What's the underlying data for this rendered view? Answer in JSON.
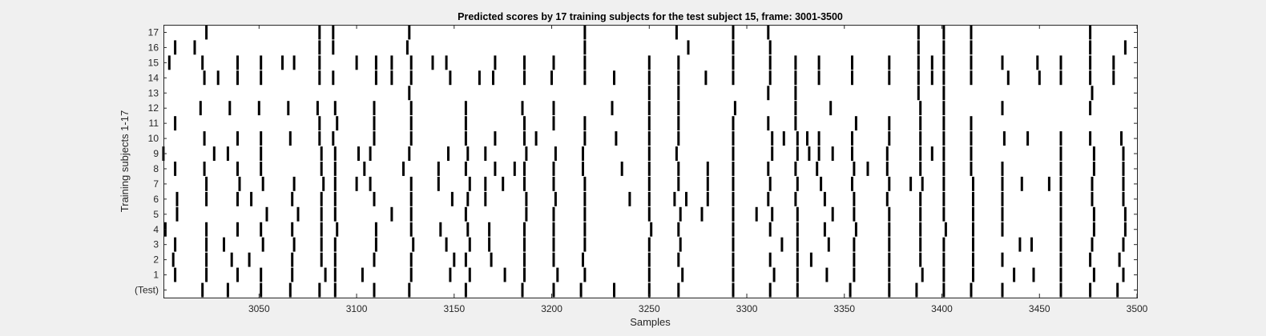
{
  "chart_data": {
    "type": "raster",
    "title": "Predicted scores by 17 training subjects for the test subject 15, frame: 3001-3500",
    "xlabel": "Samples",
    "ylabel": "Training subjects 1-17",
    "xlim": [
      3001,
      3500
    ],
    "xticks": [
      3050,
      3100,
      3150,
      3200,
      3250,
      3300,
      3350,
      3400,
      3450,
      3500
    ],
    "row_labels": [
      "17",
      "16",
      "15",
      "14",
      "13",
      "12",
      "11",
      "10",
      "9",
      "8",
      "7",
      "6",
      "5",
      "4",
      "3",
      "2",
      "1",
      "(Test)"
    ],
    "grid": false,
    "colors": {
      "background": "#f0f0f0",
      "plot_area": "#ffffff",
      "mark": "#000000"
    },
    "rows": [
      {
        "label": "17",
        "events": [
          3023,
          3081,
          3088,
          3127,
          3217,
          3264,
          3293,
          3311,
          3388,
          3401,
          3415,
          3476
        ]
      },
      {
        "label": "16",
        "events": [
          3007,
          3017,
          3081,
          3088,
          3126,
          3217,
          3270,
          3293,
          3312,
          3388,
          3401,
          3415,
          3476,
          3494
        ]
      },
      {
        "label": "15",
        "events": [
          3004,
          3021,
          3039,
          3051,
          3062,
          3068,
          3081,
          3100,
          3110,
          3118,
          3128,
          3139,
          3146,
          3171,
          3186,
          3201,
          3217,
          3250,
          3265,
          3293,
          3312,
          3325,
          3337,
          3354,
          3373,
          3388,
          3395,
          3401,
          3415,
          3431,
          3449,
          3461,
          3476,
          3488
        ]
      },
      {
        "label": "14",
        "events": [
          3022,
          3029,
          3039,
          3051,
          3081,
          3088,
          3110,
          3118,
          3128,
          3148,
          3163,
          3170,
          3186,
          3200,
          3217,
          3232,
          3250,
          3265,
          3279,
          3293,
          3312,
          3325,
          3337,
          3354,
          3373,
          3388,
          3395,
          3401,
          3415,
          3434,
          3450,
          3461,
          3476,
          3488
        ]
      },
      {
        "label": "13",
        "events": [
          3127,
          3250,
          3265,
          3311,
          3325,
          3388,
          3401,
          3477
        ]
      },
      {
        "label": "12",
        "events": [
          3020,
          3035,
          3050,
          3065,
          3080,
          3089,
          3109,
          3128,
          3156,
          3185,
          3201,
          3231,
          3250,
          3265,
          3294,
          3325,
          3343,
          3389,
          3401,
          3431,
          3476
        ]
      },
      {
        "label": "11",
        "events": [
          3007,
          3081,
          3090,
          3109,
          3128,
          3156,
          3186,
          3201,
          3217,
          3250,
          3265,
          3293,
          3311,
          3325,
          3356,
          3373,
          3389,
          3401,
          3415
        ]
      },
      {
        "label": "10",
        "events": [
          3022,
          3039,
          3051,
          3066,
          3081,
          3088,
          3109,
          3128,
          3156,
          3171,
          3186,
          3192,
          3217,
          3233,
          3250,
          3265,
          3293,
          3313,
          3319,
          3326,
          3331,
          3337,
          3354,
          3373,
          3389,
          3401,
          3415,
          3432,
          3444,
          3461,
          3476,
          3492
        ]
      },
      {
        "label": "9",
        "events": [
          3001,
          3027,
          3034,
          3051,
          3082,
          3089,
          3101,
          3107,
          3127,
          3147,
          3157,
          3166,
          3187,
          3202,
          3216,
          3250,
          3264,
          3293,
          3313,
          3326,
          3332,
          3337,
          3344,
          3354,
          3372,
          3389,
          3395,
          3401,
          3415,
          3461,
          3478,
          3493
        ]
      },
      {
        "label": "8",
        "events": [
          3007,
          3022,
          3039,
          3051,
          3082,
          3089,
          3104,
          3124,
          3142,
          3156,
          3171,
          3181,
          3186,
          3201,
          3216,
          3236,
          3250,
          3265,
          3280,
          3293,
          3311,
          3325,
          3336,
          3355,
          3362,
          3372,
          3389,
          3401,
          3415,
          3431,
          3461,
          3478,
          3493
        ]
      },
      {
        "label": "7",
        "events": [
          3023,
          3040,
          3052,
          3068,
          3083,
          3089,
          3100,
          3107,
          3128,
          3142,
          3158,
          3166,
          3175,
          3186,
          3201,
          3217,
          3250,
          3265,
          3280,
          3293,
          3312,
          3326,
          3338,
          3354,
          3373,
          3384,
          3390,
          3401,
          3416,
          3431,
          3441,
          3455,
          3461,
          3477,
          3493
        ]
      },
      {
        "label": "6",
        "events": [
          3008,
          3023,
          3039,
          3046,
          3067,
          3082,
          3089,
          3109,
          3128,
          3149,
          3157,
          3166,
          3187,
          3202,
          3217,
          3240,
          3250,
          3263,
          3269,
          3280,
          3293,
          3311,
          3325,
          3340,
          3355,
          3372,
          3389,
          3401,
          3416,
          3431,
          3461,
          3477,
          3493
        ]
      },
      {
        "label": "5",
        "events": [
          3008,
          3054,
          3070,
          3082,
          3089,
          3118,
          3128,
          3156,
          3187,
          3201,
          3217,
          3250,
          3266,
          3277,
          3293,
          3305,
          3313,
          3326,
          3344,
          3355,
          3373,
          3389,
          3401,
          3416,
          3431,
          3461,
          3478,
          3494
        ]
      },
      {
        "label": "4",
        "events": [
          3002,
          3023,
          3039,
          3051,
          3067,
          3082,
          3090,
          3110,
          3128,
          3143,
          3157,
          3168,
          3186,
          3201,
          3217,
          3251,
          3265,
          3293,
          3312,
          3326,
          3340,
          3356,
          3373,
          3389,
          3402,
          3416,
          3431,
          3461,
          3478,
          3494
        ]
      },
      {
        "label": "3",
        "events": [
          3007,
          3023,
          3032,
          3052,
          3068,
          3082,
          3089,
          3110,
          3129,
          3146,
          3158,
          3168,
          3186,
          3201,
          3217,
          3250,
          3266,
          3293,
          3318,
          3326,
          3342,
          3355,
          3373,
          3389,
          3401,
          3416,
          3440,
          3446,
          3461,
          3477,
          3493
        ]
      },
      {
        "label": "2",
        "events": [
          3006,
          3023,
          3036,
          3045,
          3067,
          3082,
          3089,
          3109,
          3128,
          3150,
          3156,
          3169,
          3186,
          3201,
          3216,
          3250,
          3265,
          3293,
          3312,
          3326,
          3333,
          3355,
          3373,
          3389,
          3401,
          3416,
          3431,
          3461,
          3476,
          3491
        ]
      },
      {
        "label": "1",
        "events": [
          3007,
          3023,
          3039,
          3051,
          3067,
          3084,
          3089,
          3103,
          3128,
          3148,
          3158,
          3176,
          3186,
          3203,
          3217,
          3250,
          3267,
          3293,
          3314,
          3326,
          3341,
          3355,
          3373,
          3390,
          3401,
          3416,
          3437,
          3447,
          3461,
          3478,
          3493
        ]
      },
      {
        "label": "(Test)",
        "events": [
          3021,
          3034,
          3051,
          3066,
          3081,
          3089,
          3109,
          3127,
          3156,
          3185,
          3201,
          3215,
          3232,
          3250,
          3265,
          3293,
          3312,
          3326,
          3353,
          3373,
          3387,
          3401,
          3415,
          3431,
          3461,
          3476,
          3490
        ]
      }
    ]
  }
}
